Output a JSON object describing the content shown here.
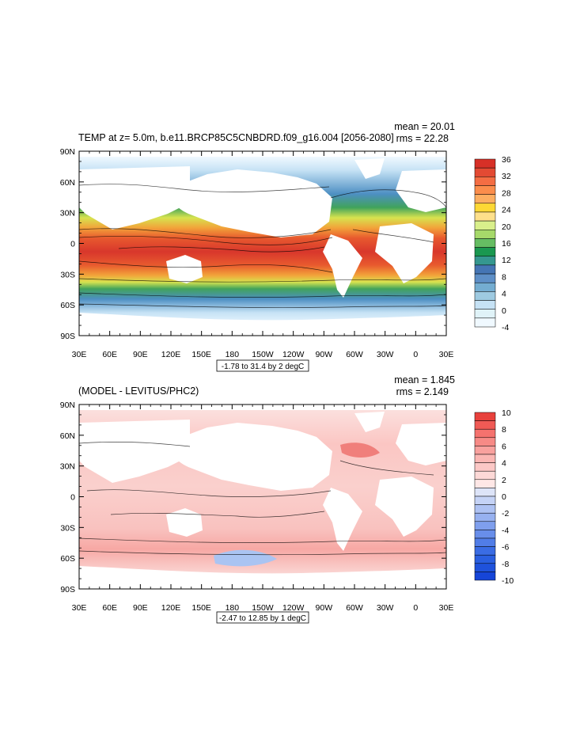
{
  "chart_data": [
    {
      "type": "heatmap",
      "title": "TEMP at z=   5.0m, b.e11.BRCP85C5CNBDRD.f09_g16.004 [2056-2080]",
      "stats": {
        "mean": "mean = 20.01",
        "rms": "rms = 22.28"
      },
      "contour_info": "-1.78 to 31.4 by 2 degC",
      "yticks": [
        "90N",
        "60N",
        "30N",
        "0",
        "30S",
        "60S",
        "90S"
      ],
      "xticks": [
        "30E",
        "60E",
        "90E",
        "120E",
        "150E",
        "180",
        "150W",
        "120W",
        "90W",
        "60W",
        "30W",
        "0",
        "30E"
      ],
      "colorbar": {
        "labels": [
          "36",
          "32",
          "28",
          "24",
          "20",
          "16",
          "12",
          "8",
          "4",
          "0",
          "-4"
        ],
        "colors": [
          "#d73027",
          "#e34a33",
          "#f46d43",
          "#fb8d4c",
          "#fdae61",
          "#fdd835",
          "#fee08b",
          "#d9ef8b",
          "#a6d96a",
          "#66bd63",
          "#1a9850",
          "#35978f",
          "#4575b4",
          "#5e8fc7",
          "#74add1",
          "#9ecae1",
          "#c6e2f5",
          "#e0f3f8",
          "#f0f9ff"
        ]
      }
    },
    {
      "type": "heatmap",
      "title": "(MODEL - LEVITUS/PHC2)",
      "stats": {
        "mean": "mean = 1.845",
        "rms": "rms = 2.149"
      },
      "contour_info": "-2.47 to 12.85 by 1 degC",
      "yticks": [
        "90N",
        "60N",
        "30N",
        "0",
        "30S",
        "60S",
        "90S"
      ],
      "xticks": [
        "30E",
        "60E",
        "90E",
        "120E",
        "150E",
        "180",
        "150W",
        "120W",
        "90W",
        "60W",
        "30W",
        "0",
        "30E"
      ],
      "colorbar": {
        "labels": [
          "10",
          "8",
          "6",
          "4",
          "2",
          "0",
          "-2",
          "-4",
          "-6",
          "-8",
          "-10"
        ],
        "colors": [
          "#e8413c",
          "#f05a55",
          "#f5726e",
          "#f78a86",
          "#f9a19e",
          "#fbb6b3",
          "#fcc8c6",
          "#fdd9d7",
          "#fee7e6",
          "#dde4f8",
          "#c5d3f6",
          "#aec2f3",
          "#97b1f0",
          "#7f9fed",
          "#688eea",
          "#517de7",
          "#3a6ce4",
          "#2a5fe0",
          "#1f52dc",
          "#1645d8"
        ]
      }
    }
  ]
}
